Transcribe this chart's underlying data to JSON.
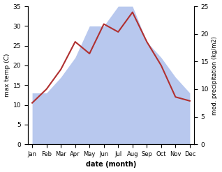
{
  "months": [
    "Jan",
    "Feb",
    "Mar",
    "Apr",
    "May",
    "Jun",
    "Jul",
    "Aug",
    "Sep",
    "Oct",
    "Nov",
    "Dec"
  ],
  "temperature": [
    10.5,
    14.0,
    19.0,
    26.0,
    23.0,
    30.5,
    28.5,
    33.5,
    26.0,
    20.0,
    12.0,
    11.0
  ],
  "precipitation_left_scale": [
    13.0,
    13.0,
    17.0,
    22.0,
    30.0,
    30.0,
    35.0,
    35.0,
    26.0,
    22.0,
    17.0,
    13.0
  ],
  "temp_color": "#b03030",
  "precip_color": "#b8c8ee",
  "temp_ylim": [
    0,
    35
  ],
  "precip_ylim": [
    0,
    25
  ],
  "temp_yticks": [
    0,
    5,
    10,
    15,
    20,
    25,
    30,
    35
  ],
  "precip_yticks": [
    0,
    5,
    10,
    15,
    20,
    25
  ],
  "xlabel": "date (month)",
  "ylabel_left": "max temp (C)",
  "ylabel_right": "med. precipitation (kg/m2)",
  "bg_color": "#ffffff"
}
